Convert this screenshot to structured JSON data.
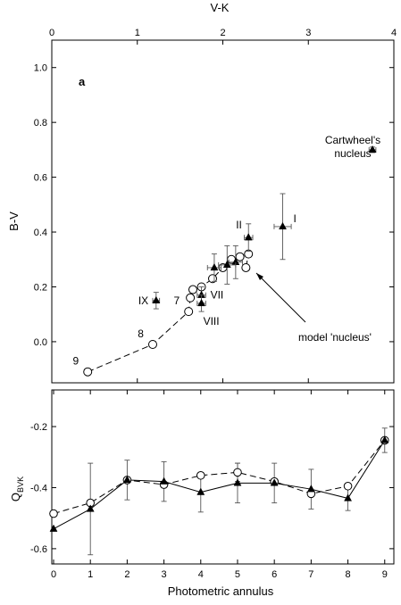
{
  "chart_data": [
    {
      "type": "scatter",
      "panel_label": "a",
      "xlabel": "V-K",
      "ylabel": "B-V",
      "xlim": [
        0,
        4
      ],
      "ylim": [
        -0.15,
        1.1
      ],
      "x_ticks": [
        0,
        1,
        2,
        3,
        4
      ],
      "y_ticks": [
        0.0,
        0.2,
        0.4,
        0.6,
        0.8,
        1.0
      ],
      "y_tick_labels": [
        "0.0",
        "0.2",
        "0.4",
        "0.6",
        "0.8",
        "1.0"
      ],
      "x_axis_position": "top",
      "annotations": [
        "Cartwheel's",
        "nucleus",
        "model 'nucleus'"
      ],
      "series": [
        {
          "marker": "filled-triangle",
          "points": [
            {
              "x": 2.7,
              "y": 0.42,
              "xerr": 0.1,
              "yerr": 0.12,
              "label": "I"
            },
            {
              "x": 2.3,
              "y": 0.38,
              "xerr": 0.05,
              "yerr": 0.05,
              "label": "II"
            },
            {
              "x": 2.15,
              "y": 0.29,
              "xerr": 0.08,
              "yerr": 0.06
            },
            {
              "x": 2.05,
              "y": 0.28,
              "xerr": 0.1,
              "yerr": 0.07
            },
            {
              "x": 1.9,
              "y": 0.27,
              "xerr": 0.08,
              "yerr": 0.05
            },
            {
              "x": 1.75,
              "y": 0.17,
              "xerr": 0.05,
              "yerr": 0.03,
              "label": "VII"
            },
            {
              "x": 1.75,
              "y": 0.14,
              "xerr": 0.05,
              "yerr": 0.03,
              "label": "VIII"
            },
            {
              "x": 1.22,
              "y": 0.15,
              "xerr": 0.04,
              "yerr": 0.03,
              "label": "IX"
            },
            {
              "x": 3.75,
              "y": 0.7,
              "xerr": 0.04,
              "yerr": 0.01
            }
          ]
        },
        {
          "marker": "open-circle",
          "connected": "dashed",
          "points": [
            {
              "x": 0.42,
              "y": -0.11,
              "label": "9"
            },
            {
              "x": 1.18,
              "y": -0.01,
              "label": "8"
            },
            {
              "x": 1.6,
              "y": 0.11,
              "label": "7"
            },
            {
              "x": 1.62,
              "y": 0.16
            },
            {
              "x": 1.65,
              "y": 0.19
            },
            {
              "x": 1.75,
              "y": 0.2
            },
            {
              "x": 1.88,
              "y": 0.23
            },
            {
              "x": 2.0,
              "y": 0.27
            },
            {
              "x": 2.1,
              "y": 0.3
            },
            {
              "x": 2.2,
              "y": 0.31
            },
            {
              "x": 2.3,
              "y": 0.32
            },
            {
              "x": 2.27,
              "y": 0.27
            }
          ]
        }
      ]
    },
    {
      "type": "line",
      "xlabel": "Photometric annulus",
      "ylabel": "Q",
      "ylabel_subscript": "BVK",
      "xlim": [
        0,
        9.2
      ],
      "ylim": [
        -0.65,
        -0.08
      ],
      "x_ticks": [
        0,
        1,
        2,
        3,
        4,
        5,
        6,
        7,
        8,
        9
      ],
      "y_ticks": [
        -0.6,
        -0.4,
        -0.2
      ],
      "y_tick_labels": [
        "-0.6",
        "-0.4",
        "-0.2"
      ],
      "series": [
        {
          "marker": "filled-triangle",
          "line": "solid",
          "x": [
            0,
            1,
            2,
            3,
            4,
            5,
            6,
            7,
            8,
            9
          ],
          "values": [
            -0.535,
            -0.47,
            -0.375,
            -0.38,
            -0.415,
            -0.385,
            -0.385,
            -0.405,
            -0.435,
            -0.245
          ],
          "yerr": [
            0.0,
            0.15,
            0.065,
            0.065,
            0.065,
            0.065,
            0.065,
            0.065,
            0.04,
            0.04
          ]
        },
        {
          "marker": "open-circle",
          "line": "dashed",
          "x": [
            0,
            1,
            2,
            3,
            4,
            5,
            6,
            7,
            8,
            9
          ],
          "values": [
            -0.485,
            -0.45,
            -0.375,
            -0.39,
            -0.36,
            -0.35,
            -0.38,
            -0.42,
            -0.395,
            -0.245
          ],
          "yerr": [
            0.0,
            0.0,
            0.0,
            0.0,
            0.0,
            0.03,
            0.0,
            0.0,
            0.0,
            0.0
          ]
        }
      ]
    }
  ]
}
